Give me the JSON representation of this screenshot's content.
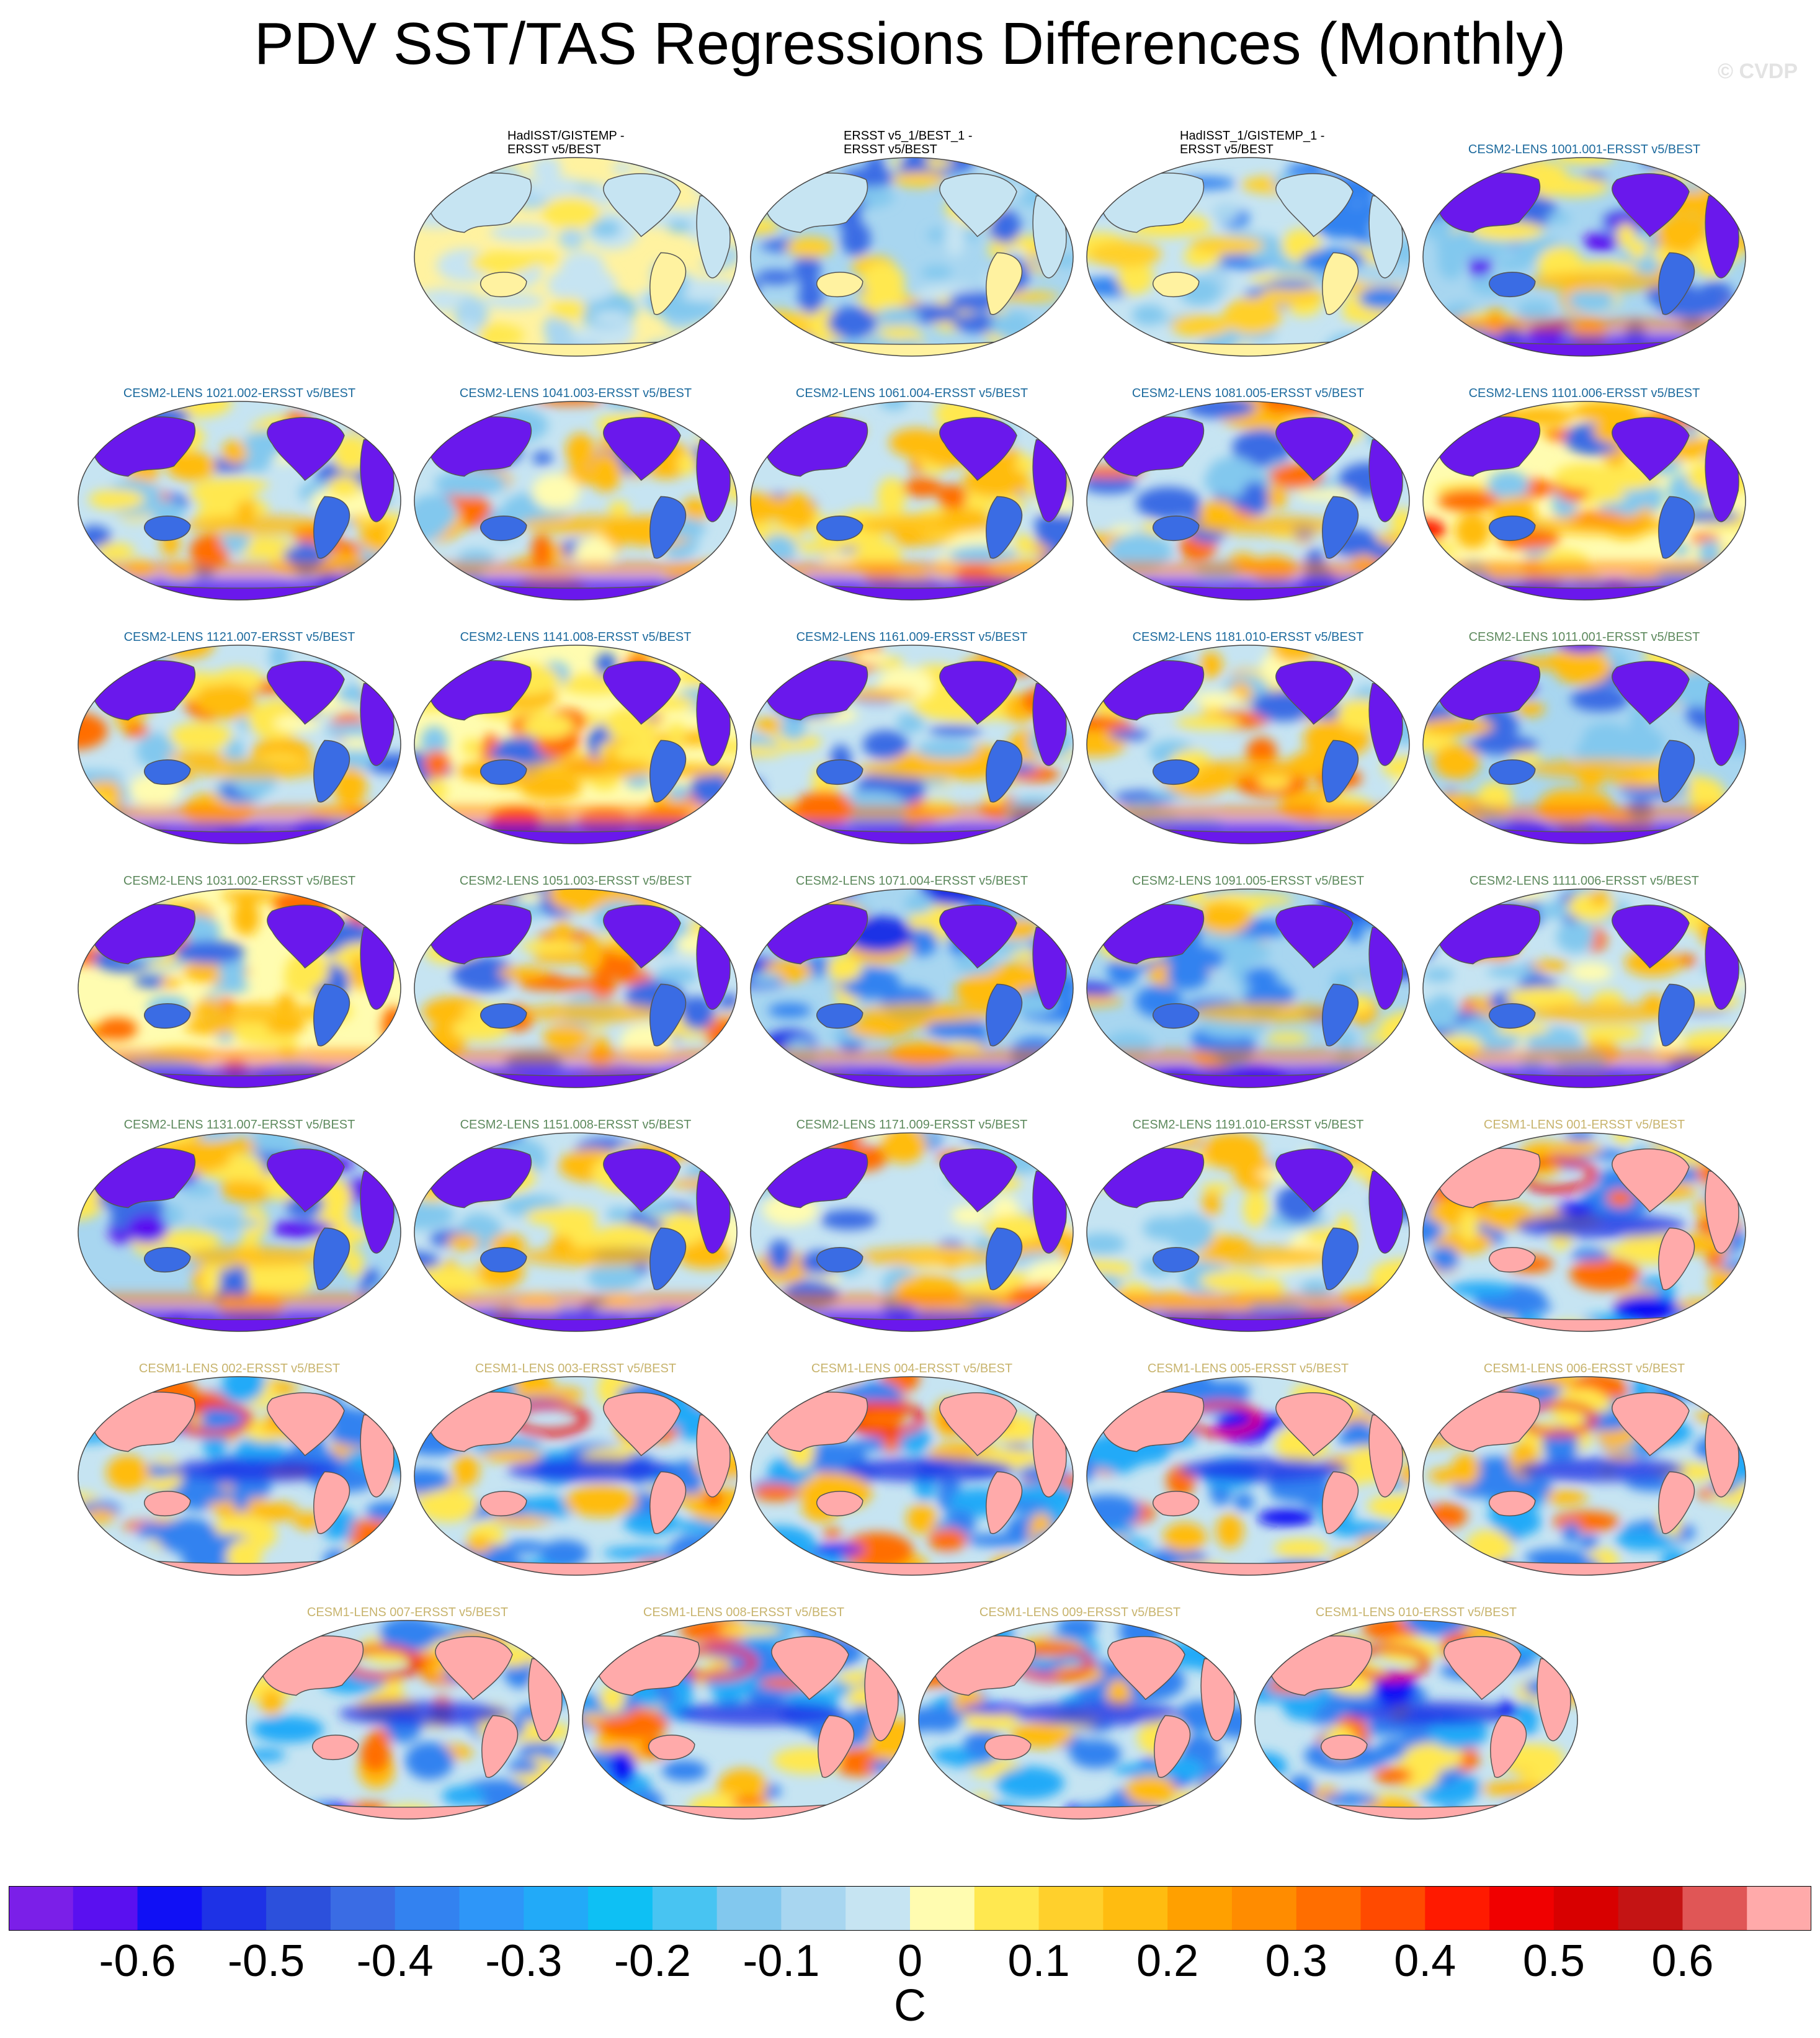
{
  "title": "PDV SST/TAS Regressions Differences (Monthly)",
  "copyright": "© CVDP",
  "units": "C",
  "colors": {
    "title_obs": "#000000",
    "title_cesm2_first": "#1e6b9e",
    "title_cesm2_second": "#5e8a5e",
    "title_cesm1": "#c8b46e",
    "land_mask": "#ffffff",
    "coastline": "#555555"
  },
  "colorbar": {
    "colors": [
      "#7b1fe8",
      "#5a10f0",
      "#1010f5",
      "#1e32e6",
      "#2c50dc",
      "#3a6ce4",
      "#3382f0",
      "#2e96f8",
      "#22aaf8",
      "#0ec0f4",
      "#48c4f2",
      "#82c8ee",
      "#a8d6f0",
      "#c6e4f2",
      "#fffcb0",
      "#ffe850",
      "#ffd02c",
      "#ffbc10",
      "#ffa000",
      "#ff8c00",
      "#ff6e00",
      "#ff4a00",
      "#ff1a00",
      "#f00000",
      "#d80000",
      "#c41414",
      "#e05656",
      "#ffaaaa"
    ],
    "labels": [
      "-0.6",
      "-0.5",
      "-0.4",
      "-0.3",
      "-0.2",
      "-0.1",
      "0",
      "0.1",
      "0.2",
      "0.3",
      "0.4",
      "0.5",
      "0.6"
    ]
  },
  "panels": [
    {
      "title": "HadISST/GISTEMP - ERSST v5/BEST",
      "title_lines": [
        "HadISST/GISTEMP -",
        "ERSST v5/BEST"
      ],
      "group": "obs",
      "style": "obs_mild"
    },
    {
      "title": "ERSST v5_1/BEST_1 - ERSST v5/BEST",
      "title_lines": [
        "ERSST v5_1/BEST_1 -",
        "ERSST v5/BEST"
      ],
      "group": "obs",
      "style": "obs_blue"
    },
    {
      "title": "HadISST_1/GISTEMP_1 - ERSST v5/BEST",
      "title_lines": [
        "HadISST_1/GISTEMP_1 -",
        "ERSST v5/BEST"
      ],
      "group": "obs",
      "style": "obs_mixed"
    },
    {
      "title": "CESM2-LENS 1001.001-ERSST v5/BEST",
      "group": "cesm2a",
      "style": "cesm2_mild"
    },
    {
      "title": "CESM2-LENS 1021.002-ERSST v5/BEST",
      "group": "cesm2a",
      "style": "cesm2"
    },
    {
      "title": "CESM2-LENS 1041.003-ERSST v5/BEST",
      "group": "cesm2a",
      "style": "cesm2"
    },
    {
      "title": "CESM2-LENS 1061.004-ERSST v5/BEST",
      "group": "cesm2a",
      "style": "cesm2"
    },
    {
      "title": "CESM2-LENS 1081.005-ERSST v5/BEST",
      "group": "cesm2a",
      "style": "cesm2"
    },
    {
      "title": "CESM2-LENS 1101.006-ERSST v5/BEST",
      "group": "cesm2a",
      "style": "cesm2_hot"
    },
    {
      "title": "CESM2-LENS 1121.007-ERSST v5/BEST",
      "group": "cesm2a",
      "style": "cesm2"
    },
    {
      "title": "CESM2-LENS 1141.008-ERSST v5/BEST",
      "group": "cesm2a",
      "style": "cesm2_hot"
    },
    {
      "title": "CESM2-LENS 1161.009-ERSST v5/BEST",
      "group": "cesm2a",
      "style": "cesm2"
    },
    {
      "title": "CESM2-LENS 1181.010-ERSST v5/BEST",
      "group": "cesm2a",
      "style": "cesm2"
    },
    {
      "title": "CESM2-LENS 1011.001-ERSST v5/BEST",
      "group": "cesm2b",
      "style": "cesm2_mild"
    },
    {
      "title": "CESM2-LENS 1031.002-ERSST v5/BEST",
      "group": "cesm2b",
      "style": "cesm2_hot"
    },
    {
      "title": "CESM2-LENS 1051.003-ERSST v5/BEST",
      "group": "cesm2b",
      "style": "cesm2"
    },
    {
      "title": "CESM2-LENS 1071.004-ERSST v5/BEST",
      "group": "cesm2b",
      "style": "cesm2_blue"
    },
    {
      "title": "CESM2-LENS 1091.005-ERSST v5/BEST",
      "group": "cesm2b",
      "style": "cesm2_blue"
    },
    {
      "title": "CESM2-LENS 1111.006-ERSST v5/BEST",
      "group": "cesm2b",
      "style": "cesm2"
    },
    {
      "title": "CESM2-LENS 1131.007-ERSST v5/BEST",
      "group": "cesm2b",
      "style": "cesm2_mild"
    },
    {
      "title": "CESM2-LENS 1151.008-ERSST v5/BEST",
      "group": "cesm2b",
      "style": "cesm2"
    },
    {
      "title": "CESM2-LENS 1171.009-ERSST v5/BEST",
      "group": "cesm2b",
      "style": "cesm2"
    },
    {
      "title": "CESM2-LENS 1191.010-ERSST v5/BEST",
      "group": "cesm2b",
      "style": "cesm2"
    },
    {
      "title": "CESM1-LENS 001-ERSST v5/BEST",
      "group": "cesm1",
      "style": "cesm1"
    },
    {
      "title": "CESM1-LENS 002-ERSST v5/BEST",
      "group": "cesm1",
      "style": "cesm1"
    },
    {
      "title": "CESM1-LENS 003-ERSST v5/BEST",
      "group": "cesm1",
      "style": "cesm1"
    },
    {
      "title": "CESM1-LENS 004-ERSST v5/BEST",
      "group": "cesm1",
      "style": "cesm1"
    },
    {
      "title": "CESM1-LENS 005-ERSST v5/BEST",
      "group": "cesm1",
      "style": "cesm1"
    },
    {
      "title": "CESM1-LENS 006-ERSST v5/BEST",
      "group": "cesm1",
      "style": "cesm1"
    },
    {
      "title": "CESM1-LENS 007-ERSST v5/BEST",
      "group": "cesm1",
      "style": "cesm1"
    },
    {
      "title": "CESM1-LENS 008-ERSST v5/BEST",
      "group": "cesm1",
      "style": "cesm1"
    },
    {
      "title": "CESM1-LENS 009-ERSST v5/BEST",
      "group": "cesm1",
      "style": "cesm1"
    },
    {
      "title": "CESM1-LENS 010-ERSST v5/BEST",
      "group": "cesm1",
      "style": "cesm1"
    }
  ]
}
